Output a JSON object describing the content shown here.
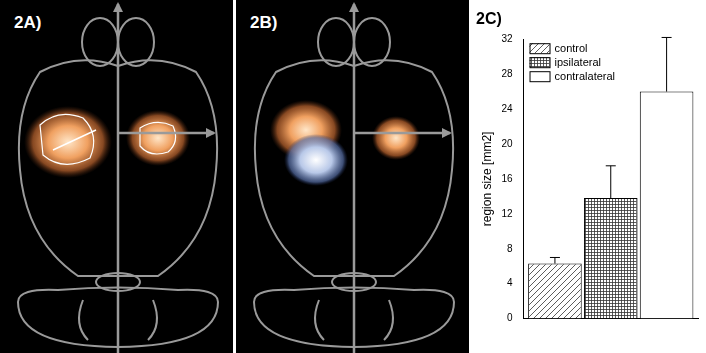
{
  "panels": [
    {
      "label": "2A)"
    },
    {
      "label": "2B)"
    }
  ],
  "chart_data": {
    "type": "bar",
    "title": "2C)",
    "ylabel": "region size [mm2]",
    "categories": [
      null
    ],
    "series": [
      {
        "name": "control",
        "color": "#ffffff",
        "values": [
          6.3
        ],
        "errors": [
          0.7
        ]
      },
      {
        "name": "ipsilateral",
        "color": "#ffffff",
        "values": [
          13.8
        ],
        "errors": [
          3.7
        ]
      },
      {
        "name": "contralateral",
        "color": "#ffffff",
        "values": [
          26
        ],
        "errors": [
          6.2
        ]
      }
    ],
    "ylim": [
      0,
      32
    ],
    "yticks": [
      0,
      4,
      8,
      12,
      16,
      20,
      24,
      28,
      32
    ],
    "grid": false,
    "legend": "top-left"
  }
}
